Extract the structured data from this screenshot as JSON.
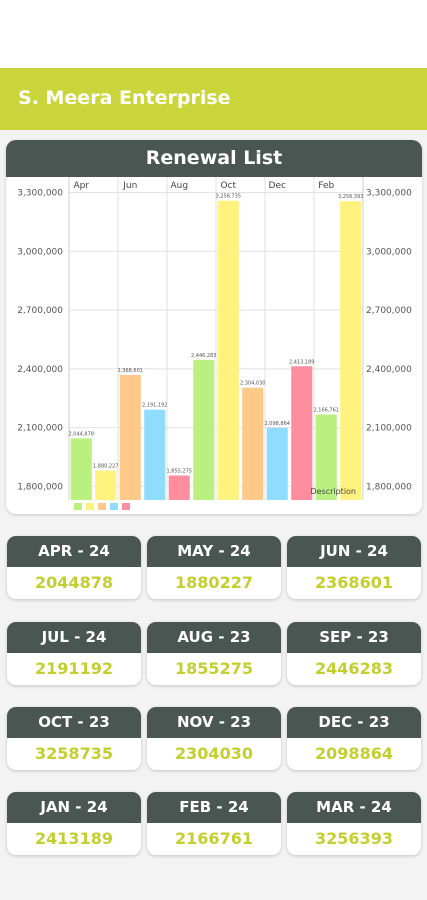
{
  "header": {
    "title": "S. Meera Enterprise"
  },
  "chart_card": {
    "title": "Renewal List"
  },
  "chart_data": {
    "type": "bar",
    "top_month_labels": [
      "Apr",
      "Jun",
      "Aug",
      "Oct",
      "Dec",
      "Feb"
    ],
    "y_ticks": [
      "3,300,000",
      "3,000,000",
      "2,700,000",
      "2,400,000",
      "2,100,000",
      "1,800,000"
    ],
    "y_tick_values": [
      3300000,
      3000000,
      2700000,
      2400000,
      2100000,
      1800000
    ],
    "ylim": [
      1730000,
      3380000
    ],
    "values": [
      2044878,
      1880227,
      2368601,
      2191192,
      1855275,
      2446283,
      3258735,
      2304030,
      2098864,
      2413189,
      2166761,
      3256393
    ],
    "value_labels": [
      "2,044,878",
      "1,880,227",
      "2,368,601",
      "2,191,192",
      "1,855,275",
      "2,446,283",
      "3,258,735",
      "2,304,030",
      "2,098,864",
      "2,413,189",
      "2,166,761",
      "3,256,393"
    ],
    "bar_colors": [
      "#b9f07f",
      "#fff27f",
      "#ffc98a",
      "#8fdcff",
      "#ff8da0",
      "#b9f07f",
      "#fff27f",
      "#ffc98a",
      "#8fdcff",
      "#ff8da0",
      "#b9f07f",
      "#fff27f"
    ],
    "legend_label": "Description",
    "legend_colors": [
      "#b9f07f",
      "#fff27f",
      "#ffc98a",
      "#8fdcff",
      "#ff8da0"
    ]
  },
  "tiles": [
    {
      "month": "APR - 24",
      "value": "2044878"
    },
    {
      "month": "MAY - 24",
      "value": "1880227"
    },
    {
      "month": "JUN - 24",
      "value": "2368601"
    },
    {
      "month": "JUL - 24",
      "value": "2191192"
    },
    {
      "month": "AUG - 23",
      "value": "1855275"
    },
    {
      "month": "SEP - 23",
      "value": "2446283"
    },
    {
      "month": "OCT - 23",
      "value": "3258735"
    },
    {
      "month": "NOV - 23",
      "value": "2304030"
    },
    {
      "month": "DEC - 23",
      "value": "2098864"
    },
    {
      "month": "JAN - 24",
      "value": "2413189"
    },
    {
      "month": "FEB - 24",
      "value": "2166761"
    },
    {
      "month": "MAR - 24",
      "value": "3256393"
    }
  ]
}
